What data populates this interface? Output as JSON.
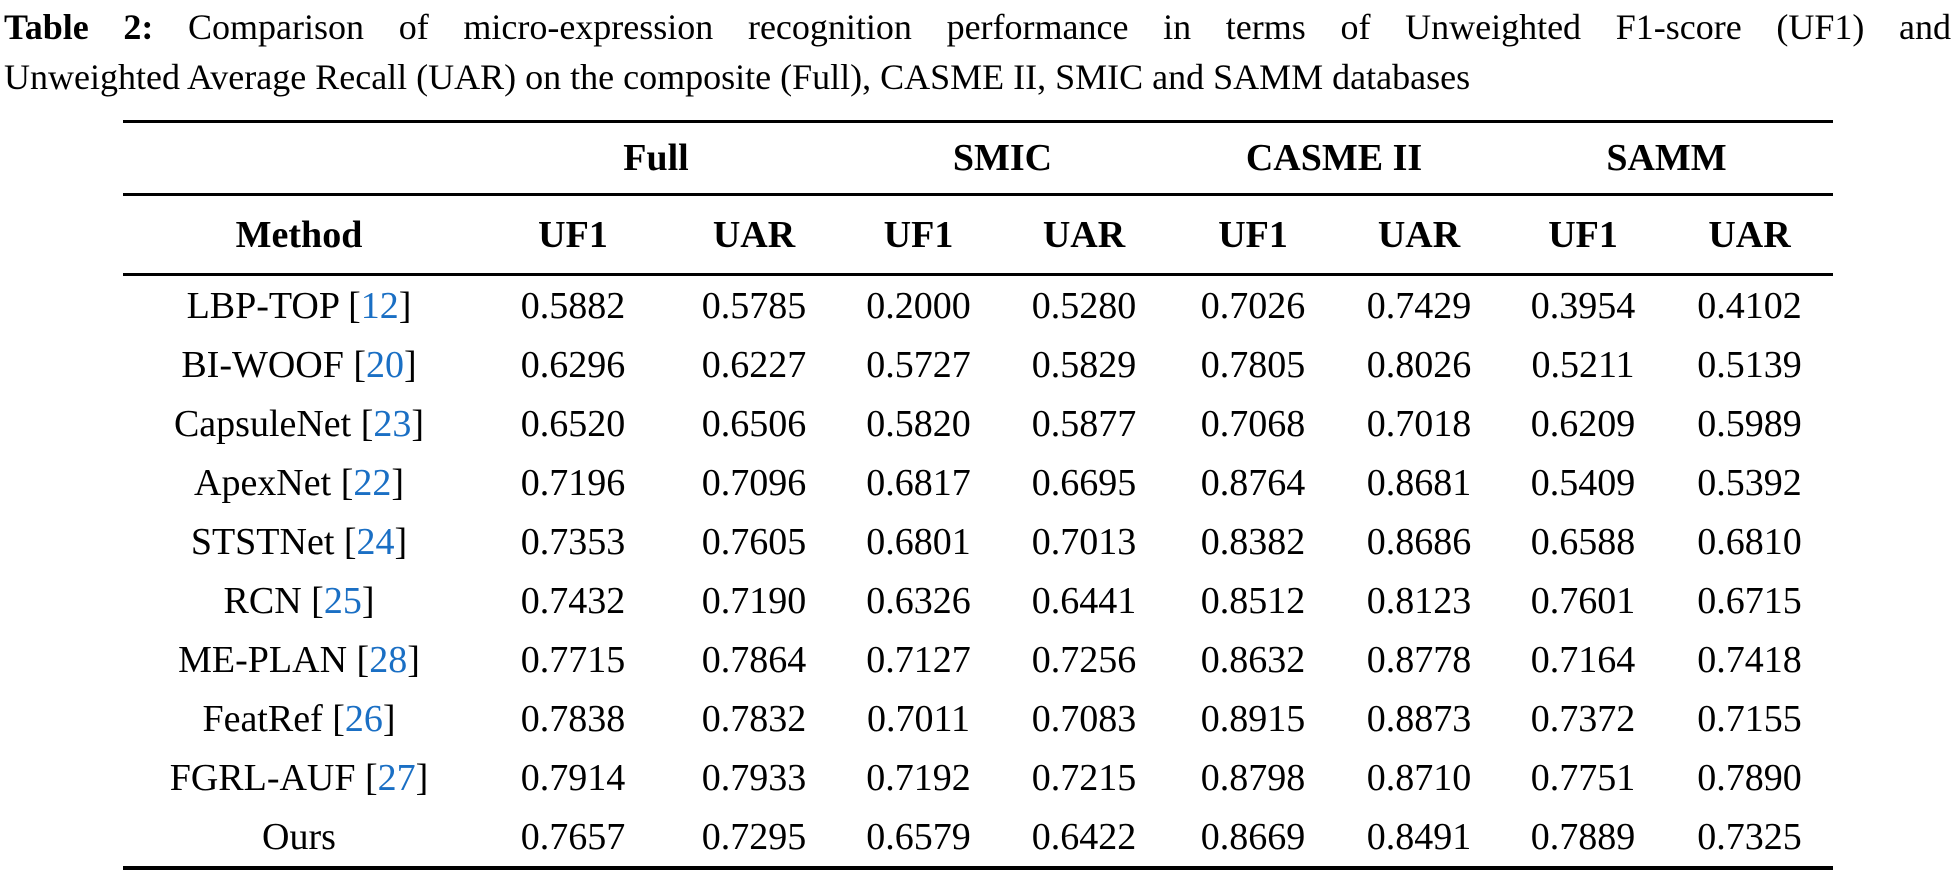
{
  "caption": {
    "label": "Table 2:",
    "line1": "Comparison of micro-expression recognition performance in terms of Unweighted F1-score (UF1) and",
    "line2": "Unweighted Average Recall (UAR) on the composite (Full), CASME II, SMIC and SAMM databases"
  },
  "table": {
    "group_headers": [
      "Full",
      "SMIC",
      "CASME II",
      "SAMM"
    ],
    "method_header": "Method",
    "sub_headers": [
      "UF1",
      "UAR",
      "UF1",
      "UAR",
      "UF1",
      "UAR",
      "UF1",
      "UAR"
    ],
    "citation_brackets": {
      "open": "[",
      "close": "]"
    },
    "rows": [
      {
        "method": "LBP-TOP",
        "cite": "12",
        "values": [
          "0.5882",
          "0.5785",
          "0.2000",
          "0.5280",
          "0.7026",
          "0.7429",
          "0.3954",
          "0.4102"
        ]
      },
      {
        "method": "BI-WOOF",
        "cite": "20",
        "values": [
          "0.6296",
          "0.6227",
          "0.5727",
          "0.5829",
          "0.7805",
          "0.8026",
          "0.5211",
          "0.5139"
        ]
      },
      {
        "method": "CapsuleNet",
        "cite": "23",
        "values": [
          "0.6520",
          "0.6506",
          "0.5820",
          "0.5877",
          "0.7068",
          "0.7018",
          "0.6209",
          "0.5989"
        ]
      },
      {
        "method": "ApexNet",
        "cite": "22",
        "values": [
          "0.7196",
          "0.7096",
          "0.6817",
          "0.6695",
          "0.8764",
          "0.8681",
          "0.5409",
          "0.5392"
        ]
      },
      {
        "method": "STSTNet",
        "cite": "24",
        "values": [
          "0.7353",
          "0.7605",
          "0.6801",
          "0.7013",
          "0.8382",
          "0.8686",
          "0.6588",
          "0.6810"
        ]
      },
      {
        "method": "RCN",
        "cite": "25",
        "values": [
          "0.7432",
          "0.7190",
          "0.6326",
          "0.6441",
          "0.8512",
          "0.8123",
          "0.7601",
          "0.6715"
        ]
      },
      {
        "method": "ME-PLAN",
        "cite": "28",
        "values": [
          "0.7715",
          "0.7864",
          "0.7127",
          "0.7256",
          "0.8632",
          "0.8778",
          "0.7164",
          "0.7418"
        ]
      },
      {
        "method": "FeatRef",
        "cite": "26",
        "values": [
          "0.7838",
          "0.7832",
          "0.7011",
          "0.7083",
          "0.8915",
          "0.8873",
          "0.7372",
          "0.7155"
        ]
      },
      {
        "method": "FGRL-AUF",
        "cite": "27",
        "values": [
          "0.7914",
          "0.7933",
          "0.7192",
          "0.7215",
          "0.8798",
          "0.8710",
          "0.7751",
          "0.7890"
        ]
      },
      {
        "method": "Ours",
        "cite": null,
        "values": [
          "0.7657",
          "0.7295",
          "0.6579",
          "0.6422",
          "0.8669",
          "0.8491",
          "0.7889",
          "0.7325"
        ]
      }
    ]
  },
  "colors": {
    "background": "#ffffff",
    "text": "#000000",
    "rule": "#000000",
    "citation_link": "#1a6fc4"
  }
}
